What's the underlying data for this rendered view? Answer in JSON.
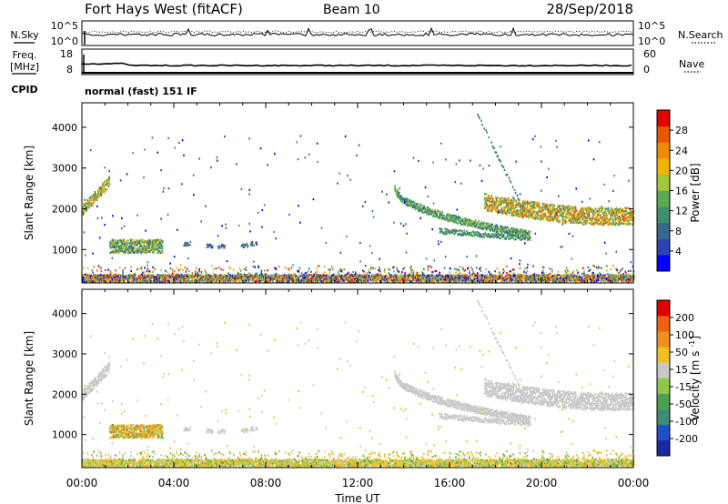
{
  "header": {
    "title": "Fort Hays West (fitACF)",
    "beam": "Beam 10",
    "date": "28/Sep/2018"
  },
  "noise_panel": {
    "left_label": "N.Sky",
    "right_label": "N.Search",
    "left_ticks": [
      "10^5",
      "10^0"
    ],
    "right_ticks": [
      "10^5",
      "10^0"
    ],
    "left_legend_style": "solid",
    "right_legend_style": "dotted"
  },
  "freq_panel": {
    "left_label": "Freq.",
    "left_unit": "[MHz]",
    "right_label": "Nave",
    "left_ticks": [
      "18",
      "8"
    ],
    "right_ticks": [
      "60",
      "0"
    ],
    "left_legend_style": "solid",
    "right_legend_style": "dotted"
  },
  "cpid": {
    "label": "CPID",
    "value": "normal (fast) 151 IF"
  },
  "chart_data": [
    {
      "type": "heatmap",
      "name": "power",
      "ylabel": "Slant Range [km]",
      "ylim": [
        180,
        4600
      ],
      "yticks": [
        1000,
        2000,
        3000,
        4000
      ],
      "xlim": [
        0,
        24
      ],
      "colorbar": {
        "label": "Power [dB]",
        "range": [
          0,
          32
        ],
        "tick_labels": [
          "4",
          "8",
          "12",
          "16",
          "20",
          "24",
          "28"
        ],
        "colors": [
          "#0000ff",
          "#2a44b0",
          "#356a8a",
          "#3f8f6a",
          "#5aaa50",
          "#a6c43c",
          "#f0b400",
          "#f08a00",
          "#e85800",
          "#e00000"
        ]
      },
      "echo_regions": [
        {
          "t0": 0.0,
          "t1": 24.0,
          "r0": 200,
          "r1": 380,
          "tag": "ground scatter"
        },
        {
          "t0": 0.0,
          "t1": 1.2,
          "r0": 1900,
          "r1": 2700,
          "tag": "early echoes"
        },
        {
          "t0": 1.2,
          "t1": 3.5,
          "r0": 900,
          "r1": 1250,
          "tag": "patch"
        },
        {
          "t0": 13.6,
          "t1": 19.5,
          "r0": 1300,
          "r1": 2600,
          "tag": "descending arc"
        },
        {
          "t0": 17.5,
          "t1": 24.0,
          "r0": 1550,
          "r1": 2350,
          "tag": "late band"
        }
      ]
    },
    {
      "type": "heatmap",
      "name": "velocity",
      "xlabel": "Time UT",
      "ylabel": "Slant Range [km]",
      "ylim": [
        180,
        4600
      ],
      "yticks": [
        1000,
        2000,
        3000,
        4000
      ],
      "xlim": [
        0,
        24
      ],
      "xtick_labels": [
        "00:00",
        "04:00",
        "08:00",
        "12:00",
        "16:00",
        "20:00",
        "00:00"
      ],
      "colorbar": {
        "label": "Velocity [m s^-1]",
        "tick_labels": [
          "200",
          "100",
          "50",
          "15",
          "-15",
          "-50",
          "-100",
          "-200"
        ],
        "colors": [
          "#1c28a0",
          "#2050c8",
          "#3c8c78",
          "#4aa050",
          "#8cc84a",
          "#c8c8c8",
          "#f0c020",
          "#f09020",
          "#f06010",
          "#e00000"
        ]
      }
    }
  ]
}
